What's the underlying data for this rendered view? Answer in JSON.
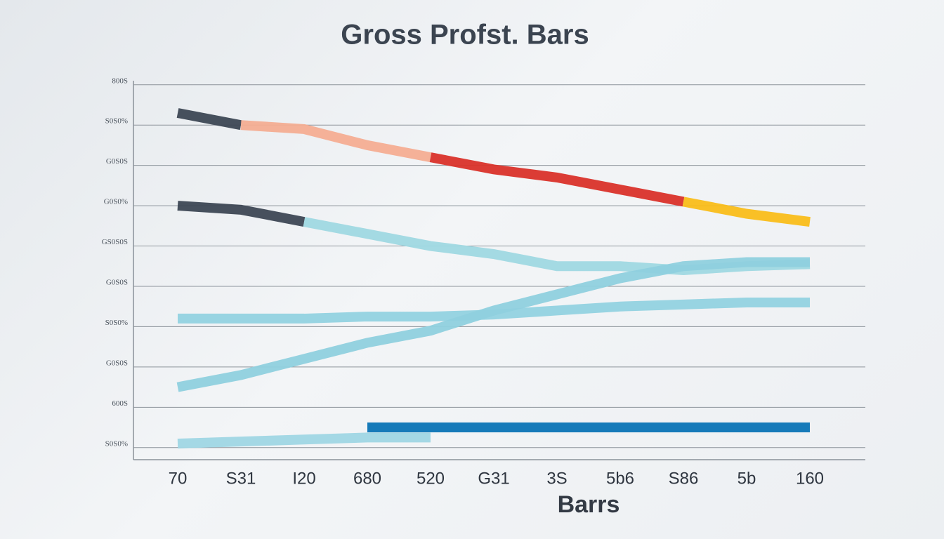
{
  "chart_data": {
    "type": "line",
    "title": "Gross Profst. Bars",
    "x_label": "Barrs",
    "categories": [
      "70",
      "S31",
      "I20",
      "680",
      "520",
      "G31",
      "3S",
      "5b6",
      "S86",
      "5b",
      "160"
    ],
    "ylim": [
      -0.3,
      9.1
    ],
    "yticks": [
      {
        "value": 0,
        "label": "S0S0%"
      },
      {
        "value": 1,
        "label": "600S"
      },
      {
        "value": 2,
        "label": "G0S0S"
      },
      {
        "value": 3,
        "label": "S0S0%"
      },
      {
        "value": 4,
        "label": "G0S0S"
      },
      {
        "value": 5,
        "label": "GS0S0S"
      },
      {
        "value": 6,
        "label": "G0S0%"
      },
      {
        "value": 7,
        "label": "G0S0S"
      },
      {
        "value": 8,
        "label": "S0S0%"
      },
      {
        "value": 9,
        "label": "800S"
      }
    ],
    "grid": true,
    "series": [
      {
        "color": "#3d4754",
        "values": [
          8.3,
          8.0,
          null,
          null,
          null,
          null,
          null,
          null,
          null,
          null,
          null
        ]
      },
      {
        "color": "#f4ad92",
        "values": [
          null,
          8.0,
          7.9,
          7.5,
          7.2,
          null,
          null,
          null,
          null,
          null,
          null
        ]
      },
      {
        "color": "#d9322a",
        "values": [
          null,
          null,
          null,
          null,
          7.2,
          6.9,
          6.7,
          6.4,
          6.1,
          null,
          null
        ]
      },
      {
        "color": "#f9bd1a",
        "values": [
          null,
          null,
          null,
          null,
          null,
          null,
          null,
          null,
          6.1,
          5.8,
          5.6
        ]
      },
      {
        "color": "#3d4754",
        "values": [
          6.0,
          5.9,
          5.6,
          null,
          null,
          null,
          null,
          null,
          null,
          null,
          null
        ]
      },
      {
        "color": "#9fd8e2",
        "values": [
          null,
          null,
          5.6,
          5.3,
          5.0,
          4.8,
          4.5,
          4.5,
          4.4,
          4.5,
          4.55
        ]
      },
      {
        "color": "#92d2e0",
        "values": [
          3.2,
          3.2,
          3.2,
          3.25,
          3.25,
          3.3,
          3.4,
          3.5,
          3.55,
          3.6,
          3.6
        ]
      },
      {
        "color": "#8fd0de",
        "values": [
          1.5,
          1.8,
          2.2,
          2.6,
          2.9,
          3.4,
          3.8,
          4.2,
          4.5,
          4.6,
          4.6
        ]
      },
      {
        "color": "#9fd6e4",
        "values": [
          0.1,
          0.15,
          0.2,
          0.25,
          0.25,
          null,
          null,
          null,
          null,
          null,
          null
        ]
      },
      {
        "color": "#0a73b5",
        "values": [
          null,
          null,
          null,
          0.5,
          0.5,
          0.5,
          0.5,
          0.5,
          0.5,
          0.5,
          0.5
        ]
      }
    ]
  }
}
